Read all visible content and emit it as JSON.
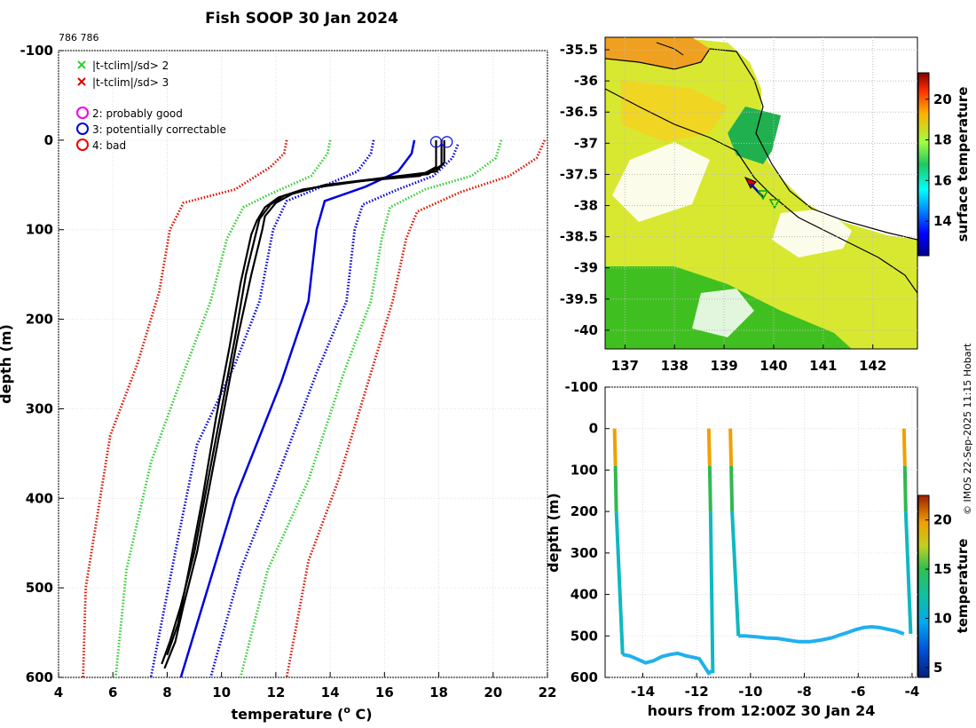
{
  "chart_data": [
    {
      "type": "line",
      "id": "profile",
      "title": "Fish SOOP 30 Jan 2024",
      "subtitle": "786 786",
      "xlabel": "temperature (",
      "xlabel_sup": "o",
      "xlabel_tail": " C)",
      "ylabel": "depth (m)",
      "xlim": [
        4,
        22
      ],
      "ylim": [
        600,
        -100
      ],
      "xticks": [
        4,
        6,
        8,
        10,
        12,
        14,
        16,
        18,
        20,
        22
      ],
      "yticks": [
        -100,
        0,
        100,
        200,
        300,
        400,
        500,
        600
      ],
      "legend": [
        {
          "marker": "x",
          "color": "#33cc33",
          "label": "|t-tclim|/sd> 2"
        },
        {
          "marker": "x",
          "color": "#dd0000",
          "label": "|t-tclim|/sd> 3"
        },
        {
          "marker": "o",
          "color": "#ee00ee",
          "label": "2: probably good"
        },
        {
          "marker": "o",
          "color": "#0000dd",
          "label": "3: potentially correctable"
        },
        {
          "marker": "o",
          "color": "#ee0000",
          "label": "4: bad"
        }
      ],
      "series": [
        {
          "name": "clim -3sd",
          "color": "#dd1100",
          "style": "dotted",
          "points": [
            [
              12.4,
              0
            ],
            [
              12.3,
              15
            ],
            [
              11.8,
              30
            ],
            [
              10.5,
              55
            ],
            [
              8.6,
              70
            ],
            [
              8.1,
              100
            ],
            [
              7.7,
              170
            ],
            [
              6.9,
              250
            ],
            [
              5.9,
              330
            ],
            [
              5.0,
              500
            ],
            [
              4.9,
              600
            ]
          ]
        },
        {
          "name": "clim -2sd",
          "color": "#33cc33",
          "style": "dotted",
          "points": [
            [
              14.0,
              0
            ],
            [
              13.9,
              15
            ],
            [
              13.3,
              40
            ],
            [
              11.8,
              60
            ],
            [
              10.8,
              75
            ],
            [
              10.2,
              110
            ],
            [
              9.6,
              180
            ],
            [
              8.6,
              260
            ],
            [
              7.4,
              360
            ],
            [
              6.5,
              480
            ],
            [
              6.1,
              600
            ]
          ]
        },
        {
          "name": "clim -1sd",
          "color": "#0000dd",
          "style": "dotted",
          "points": [
            [
              15.6,
              0
            ],
            [
              15.5,
              15
            ],
            [
              15.0,
              35
            ],
            [
              13.7,
              52
            ],
            [
              12.4,
              68
            ],
            [
              11.9,
              100
            ],
            [
              11.4,
              180
            ],
            [
              10.5,
              250
            ],
            [
              9.1,
              340
            ],
            [
              8.3,
              460
            ],
            [
              7.4,
              600
            ]
          ]
        },
        {
          "name": "clim mean",
          "color": "#0000dd",
          "style": "solid",
          "points": [
            [
              17.1,
              0
            ],
            [
              17.0,
              15
            ],
            [
              16.5,
              35
            ],
            [
              15.3,
              52
            ],
            [
              13.8,
              68
            ],
            [
              13.5,
              100
            ],
            [
              13.2,
              180
            ],
            [
              12.2,
              270
            ],
            [
              10.5,
              400
            ],
            [
              9.4,
              510
            ],
            [
              8.5,
              600
            ]
          ]
        },
        {
          "name": "clim +1sd",
          "color": "#0000dd",
          "style": "dotted",
          "points": [
            [
              18.7,
              5
            ],
            [
              18.5,
              20
            ],
            [
              17.8,
              40
            ],
            [
              16.5,
              55
            ],
            [
              15.2,
              72
            ],
            [
              14.9,
              100
            ],
            [
              14.6,
              180
            ],
            [
              13.5,
              260
            ],
            [
              12.0,
              380
            ],
            [
              10.7,
              480
            ],
            [
              9.6,
              600
            ]
          ]
        },
        {
          "name": "clim +2sd",
          "color": "#33cc33",
          "style": "dotted",
          "points": [
            [
              20.3,
              0
            ],
            [
              20.1,
              20
            ],
            [
              19.2,
              40
            ],
            [
              17.5,
              55
            ],
            [
              16.2,
              75
            ],
            [
              15.9,
              110
            ],
            [
              15.5,
              180
            ],
            [
              14.5,
              260
            ],
            [
              13.2,
              380
            ],
            [
              11.7,
              480
            ],
            [
              10.7,
              600
            ]
          ]
        },
        {
          "name": "clim +3sd",
          "color": "#dd1100",
          "style": "dotted",
          "points": [
            [
              21.9,
              0
            ],
            [
              21.6,
              20
            ],
            [
              20.6,
              40
            ],
            [
              18.8,
              58
            ],
            [
              17.2,
              80
            ],
            [
              16.8,
              110
            ],
            [
              16.3,
              180
            ],
            [
              15.4,
              270
            ],
            [
              14.3,
              380
            ],
            [
              13.2,
              470
            ],
            [
              12.4,
              600
            ]
          ]
        },
        {
          "name": "profile 1",
          "color": "#000000",
          "style": "solid",
          "points": [
            [
              18.2,
              0
            ],
            [
              18.2,
              25
            ],
            [
              17.9,
              35
            ],
            [
              16.0,
              42
            ],
            [
              13.8,
              50
            ],
            [
              12.6,
              60
            ],
            [
              12.0,
              70
            ],
            [
              11.6,
              85
            ],
            [
              11.5,
              100
            ],
            [
              11.1,
              150
            ],
            [
              10.6,
              220
            ],
            [
              10.1,
              300
            ],
            [
              9.6,
              380
            ],
            [
              9.1,
              460
            ],
            [
              8.6,
              520
            ],
            [
              8.3,
              560
            ],
            [
              7.9,
              590
            ]
          ]
        },
        {
          "name": "profile 2",
          "color": "#000000",
          "style": "solid",
          "points": [
            [
              18.1,
              0
            ],
            [
              18.1,
              28
            ],
            [
              17.6,
              38
            ],
            [
              15.6,
              44
            ],
            [
              13.4,
              53
            ],
            [
              12.3,
              62
            ],
            [
              11.8,
              72
            ],
            [
              11.4,
              88
            ],
            [
              11.3,
              100
            ],
            [
              10.9,
              150
            ],
            [
              10.5,
              220
            ],
            [
              10.0,
              300
            ],
            [
              9.5,
              380
            ],
            [
              9.0,
              460
            ],
            [
              8.5,
              520
            ],
            [
              8.1,
              560
            ],
            [
              7.8,
              585
            ]
          ]
        },
        {
          "name": "profile 3",
          "color": "#000000",
          "style": "solid",
          "points": [
            [
              17.9,
              0
            ],
            [
              17.9,
              30
            ],
            [
              17.3,
              40
            ],
            [
              15.0,
              46
            ],
            [
              13.0,
              55
            ],
            [
              12.1,
              64
            ],
            [
              11.6,
              75
            ],
            [
              11.3,
              90
            ],
            [
              11.1,
              105
            ],
            [
              10.7,
              160
            ],
            [
              10.3,
              230
            ],
            [
              9.8,
              310
            ],
            [
              9.3,
              400
            ],
            [
              8.8,
              480
            ],
            [
              8.4,
              540
            ],
            [
              8.0,
              575
            ]
          ]
        }
      ],
      "markers": [
        {
          "x": 17.9,
          "y": 2,
          "color": "#0000dd"
        },
        {
          "x": 18.3,
          "y": 2,
          "color": "#0000dd"
        }
      ]
    },
    {
      "type": "heatmap",
      "id": "map",
      "xticks": [
        137,
        138,
        139,
        140,
        141,
        142
      ],
      "yticks": [
        -35.5,
        -36,
        -36.5,
        -37,
        -37.5,
        -38,
        -38.5,
        -39,
        -39.5,
        -40
      ],
      "xlim": [
        136.6,
        142.9
      ],
      "ylim": [
        -40.3,
        -35.3
      ],
      "colorbar": {
        "label": "surface temperature",
        "range": [
          12.3,
          21.3
        ],
        "ticks": [
          14,
          16,
          18,
          20
        ]
      }
    },
    {
      "type": "scatter",
      "id": "timeseries",
      "xlabel": "hours from 12:00Z 30 Jan 24",
      "ylabel": "depth (m)",
      "xlim": [
        -15.4,
        -3.8
      ],
      "ylim": [
        600,
        -100
      ],
      "xticks": [
        -14,
        -12,
        -10,
        -8,
        -6,
        -4
      ],
      "xtick_labels": [
        "-14",
        "-12",
        "-10",
        "-8",
        "-6",
        "-4"
      ],
      "yticks": [
        -100,
        0,
        100,
        200,
        300,
        400,
        500,
        600
      ],
      "colorbar": {
        "label": "temperature",
        "range": [
          4,
          22.5
        ],
        "ticks": [
          5,
          10,
          15,
          20
        ]
      },
      "casts": [
        {
          "t_down": [
            -15.05,
            -14.75
          ],
          "bottom": 545
        },
        {
          "t_up": [
            -11.55,
            -11.25
          ]
        },
        {
          "t_down": [
            -10.75,
            -10.45
          ],
          "bottom": 500
        },
        {
          "t_up": [
            -4.3,
            -4.05
          ]
        }
      ],
      "bottom_track": [
        [
          -14.75,
          545
        ],
        [
          -14.5,
          548
        ],
        [
          -14.2,
          556
        ],
        [
          -13.9,
          565
        ],
        [
          -13.6,
          560
        ],
        [
          -13.3,
          550
        ],
        [
          -13.0,
          545
        ],
        [
          -12.7,
          542
        ],
        [
          -12.4,
          548
        ],
        [
          -12.1,
          552
        ],
        [
          -11.9,
          555
        ],
        [
          -11.7,
          575
        ],
        [
          -11.55,
          590
        ],
        [
          -11.45,
          585
        ],
        [
          -10.45,
          500
        ],
        [
          -10.2,
          500
        ],
        [
          -9.8,
          502
        ],
        [
          -9.4,
          505
        ],
        [
          -9.0,
          506
        ],
        [
          -8.6,
          510
        ],
        [
          -8.2,
          514
        ],
        [
          -7.8,
          514
        ],
        [
          -7.4,
          510
        ],
        [
          -7.0,
          505
        ],
        [
          -6.7,
          498
        ],
        [
          -6.4,
          492
        ],
        [
          -6.1,
          485
        ],
        [
          -5.8,
          480
        ],
        [
          -5.5,
          478
        ],
        [
          -5.2,
          480
        ],
        [
          -4.9,
          484
        ],
        [
          -4.6,
          488
        ],
        [
          -4.3,
          495
        ]
      ]
    }
  ],
  "footer": {
    "credit": "© IMOS 22-Sep-2025 11:15 Hobart"
  }
}
